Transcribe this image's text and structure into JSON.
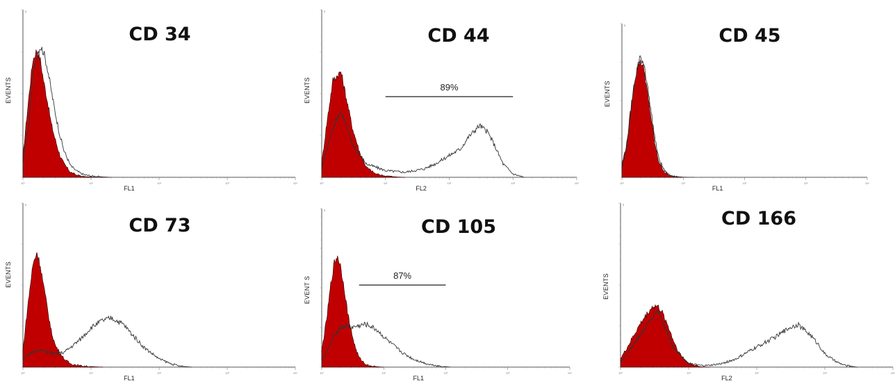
{
  "chart_data": [
    {
      "type": "area",
      "title": "CD 34",
      "xlabel": "FL1",
      "ylabel": "EVENTS",
      "x_scale": "log",
      "xlim": [
        1,
        10000
      ],
      "xticks": [
        "10⁰",
        "10¹",
        "10²",
        "10³",
        "10⁴"
      ],
      "ytick_top": "5",
      "gate": null,
      "colors": {
        "control": "#c00000",
        "stain": "#333333"
      },
      "series": [
        {
          "name": "",
          "style": "filled",
          "x": [
            1,
            1.2,
            1.4,
            1.6,
            1.8,
            2,
            2.3,
            2.6,
            3,
            3.5,
            4,
            5,
            6,
            7,
            8,
            10,
            15,
            20
          ],
          "y": [
            0.12,
            0.45,
            0.7,
            0.76,
            0.7,
            0.58,
            0.45,
            0.32,
            0.22,
            0.13,
            0.08,
            0.03,
            0.015,
            0.008,
            0.004,
            0.002,
            0,
            0
          ]
        },
        {
          "name": "",
          "style": "outline",
          "x": [
            1,
            1.2,
            1.4,
            1.6,
            1.8,
            2,
            2.3,
            2.6,
            3,
            3.5,
            4,
            5,
            6,
            7,
            8,
            10,
            15,
            20
          ],
          "y": [
            0.08,
            0.3,
            0.6,
            0.74,
            0.78,
            0.75,
            0.65,
            0.52,
            0.38,
            0.25,
            0.16,
            0.07,
            0.04,
            0.025,
            0.015,
            0.008,
            0.002,
            0
          ]
        }
      ]
    },
    {
      "type": "area",
      "title": "CD 44",
      "xlabel": "FL2",
      "ylabel": "EVENTS",
      "x_scale": "log",
      "xlim": [
        1,
        10000
      ],
      "xticks": [
        "10⁰",
        "10¹",
        "10²",
        "10³",
        "10⁴"
      ],
      "ytick_top": "5",
      "gate": {
        "label": "89%",
        "from": 10,
        "to": 1000
      },
      "colors": {
        "control": "#c00000",
        "stain": "#333333"
      },
      "series": [
        {
          "name": "",
          "style": "filled",
          "x": [
            1,
            1.2,
            1.5,
            2,
            2.5,
            3,
            4,
            5,
            7,
            10,
            15,
            20
          ],
          "y": [
            0.08,
            0.32,
            0.58,
            0.63,
            0.45,
            0.3,
            0.14,
            0.06,
            0.02,
            0.008,
            0.002,
            0
          ]
        },
        {
          "name": "",
          "style": "outline",
          "x": [
            1,
            1.5,
            2,
            3,
            5,
            10,
            20,
            40,
            60,
            100,
            150,
            200,
            300,
            400,
            500,
            700,
            1000,
            1500
          ],
          "y": [
            0.05,
            0.3,
            0.4,
            0.2,
            0.08,
            0.04,
            0.03,
            0.05,
            0.08,
            0.13,
            0.17,
            0.24,
            0.31,
            0.27,
            0.2,
            0.08,
            0.02,
            0
          ]
        }
      ]
    },
    {
      "type": "area",
      "title": "CD 45",
      "xlabel": "FL1",
      "ylabel": "EVENTS",
      "x_scale": "log",
      "xlim": [
        1,
        10000
      ],
      "xticks": [
        "10⁰",
        "10¹",
        "10²",
        "10³",
        "10⁴"
      ],
      "ytick_top": "5",
      "gate": null,
      "colors": {
        "control": "#c00000",
        "stain": "#333333"
      },
      "series": [
        {
          "name": "",
          "style": "filled",
          "x": [
            1,
            1.2,
            1.4,
            1.6,
            1.8,
            2,
            2.3,
            2.6,
            3,
            3.5,
            4,
            5,
            6,
            8,
            10
          ],
          "y": [
            0.08,
            0.22,
            0.45,
            0.62,
            0.72,
            0.76,
            0.7,
            0.55,
            0.38,
            0.2,
            0.1,
            0.03,
            0.01,
            0.003,
            0
          ]
        },
        {
          "name": "",
          "style": "outline",
          "x": [
            1,
            1.2,
            1.4,
            1.6,
            1.8,
            2,
            2.3,
            2.6,
            3,
            3.5,
            4,
            5,
            6,
            8,
            10,
            15
          ],
          "y": [
            0.06,
            0.2,
            0.42,
            0.6,
            0.72,
            0.78,
            0.74,
            0.6,
            0.42,
            0.24,
            0.12,
            0.04,
            0.015,
            0.004,
            0.001,
            0
          ]
        }
      ]
    },
    {
      "type": "area",
      "title": "CD 73",
      "xlabel": "FL1",
      "ylabel": "EVENTS",
      "x_scale": "log",
      "xlim": [
        1,
        10000
      ],
      "xticks": [
        "10⁰",
        "10¹",
        "10²",
        "10³",
        "10⁴"
      ],
      "ytick_top": "5",
      "gate": null,
      "colors": {
        "control": "#c00000",
        "stain": "#333333"
      },
      "series": [
        {
          "name": "",
          "style": "filled",
          "x": [
            1,
            1.2,
            1.4,
            1.6,
            1.8,
            2,
            2.3,
            2.6,
            3,
            4,
            5,
            7,
            10,
            15
          ],
          "y": [
            0.1,
            0.4,
            0.62,
            0.7,
            0.62,
            0.5,
            0.35,
            0.22,
            0.13,
            0.05,
            0.02,
            0.008,
            0.003,
            0
          ]
        },
        {
          "name": "",
          "style": "outline",
          "x": [
            1,
            1.5,
            2,
            3,
            4,
            5,
            7,
            10,
            14,
            20,
            30,
            40,
            60,
            100,
            150,
            200,
            300
          ],
          "y": [
            0.05,
            0.1,
            0.1,
            0.08,
            0.09,
            0.12,
            0.17,
            0.24,
            0.28,
            0.3,
            0.26,
            0.2,
            0.12,
            0.05,
            0.02,
            0.006,
            0
          ]
        }
      ]
    },
    {
      "type": "area",
      "title": "CD 105",
      "xlabel": "FL1",
      "ylabel": "EVENT S",
      "x_scale": "log",
      "xlim": [
        1,
        10000
      ],
      "xticks": [
        "10⁰",
        "10¹",
        "10²",
        "10³",
        "10⁴"
      ],
      "ytick_top": "5",
      "gate": {
        "label": "87%",
        "from": 4,
        "to": 100
      },
      "colors": {
        "control": "#c00000",
        "stain": "#333333"
      },
      "series": [
        {
          "name": "",
          "style": "filled",
          "x": [
            1,
            1.2,
            1.4,
            1.6,
            1.8,
            2,
            2.3,
            2.6,
            3,
            3.5,
            4,
            5,
            6,
            8,
            10
          ],
          "y": [
            0.1,
            0.3,
            0.52,
            0.66,
            0.7,
            0.64,
            0.5,
            0.35,
            0.22,
            0.12,
            0.06,
            0.02,
            0.008,
            0.002,
            0
          ]
        },
        {
          "name": "",
          "style": "outline",
          "x": [
            1,
            1.3,
            1.6,
            2,
            2.5,
            3,
            4,
            5,
            6,
            8,
            10,
            14,
            20,
            30,
            50,
            80,
            120
          ],
          "y": [
            0.04,
            0.12,
            0.2,
            0.25,
            0.26,
            0.25,
            0.26,
            0.27,
            0.26,
            0.23,
            0.19,
            0.14,
            0.09,
            0.05,
            0.02,
            0.006,
            0
          ]
        }
      ]
    },
    {
      "type": "area",
      "title": "CD 166",
      "xlabel": "FL2",
      "ylabel": "EVENTS",
      "x_scale": "log",
      "xlim": [
        1,
        10000
      ],
      "xticks": [
        "10⁰",
        "10¹",
        "10²",
        "10³",
        "10⁴"
      ],
      "ytick_top": "5",
      "gate": null,
      "colors": {
        "control": "#c00000",
        "stain": "#333333"
      },
      "series": [
        {
          "name": "",
          "style": "filled",
          "x": [
            1,
            1.3,
            1.6,
            2,
            2.5,
            3,
            3.5,
            4,
            5,
            6,
            7,
            8,
            10,
            13,
            15,
            20
          ],
          "y": [
            0.05,
            0.13,
            0.2,
            0.27,
            0.33,
            0.37,
            0.37,
            0.34,
            0.25,
            0.16,
            0.1,
            0.06,
            0.025,
            0.008,
            0.002,
            0
          ]
        },
        {
          "name": "",
          "style": "outline",
          "x": [
            1,
            2,
            3.5,
            6,
            10,
            15,
            20,
            30,
            50,
            80,
            120,
            200,
            300,
            400,
            600,
            800,
            1000,
            1500,
            2000,
            3000
          ],
          "y": [
            0.03,
            0.2,
            0.35,
            0.12,
            0.02,
            0.01,
            0.01,
            0.02,
            0.05,
            0.1,
            0.14,
            0.19,
            0.24,
            0.26,
            0.2,
            0.14,
            0.08,
            0.03,
            0.01,
            0
          ]
        }
      ]
    }
  ]
}
